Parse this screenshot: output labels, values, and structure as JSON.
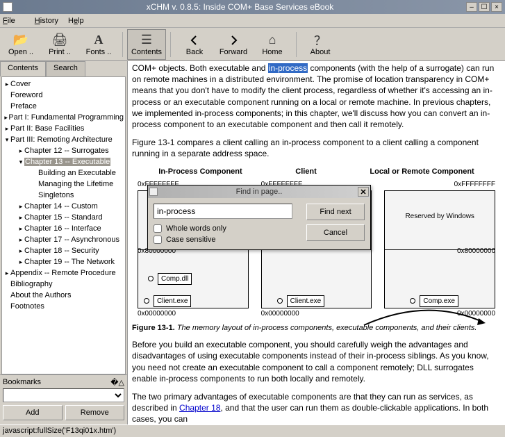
{
  "window": {
    "title": "xCHM v. 0.8.5: Inside COM+ Base Services eBook"
  },
  "menu": {
    "file": "File",
    "history": "History",
    "help": "Help"
  },
  "toolbar": {
    "open": "Open ..",
    "print": "Print ..",
    "fonts": "Fonts ..",
    "contents": "Contents",
    "back": "Back",
    "forward": "Forward",
    "home": "Home",
    "about": "About"
  },
  "sidebar": {
    "tabs": {
      "contents": "Contents",
      "search": "Search"
    },
    "tree": [
      {
        "level": 0,
        "twist": "▸",
        "label": "Cover"
      },
      {
        "level": 0,
        "twist": "",
        "label": "Foreword"
      },
      {
        "level": 0,
        "twist": "",
        "label": "Preface"
      },
      {
        "level": 0,
        "twist": "▸",
        "label": "Part I: Fundamental Programming"
      },
      {
        "level": 0,
        "twist": "▸",
        "label": "Part II: Base Facilities"
      },
      {
        "level": 0,
        "twist": "▾",
        "label": "Part III: Remoting Architecture"
      },
      {
        "level": 1,
        "twist": "▸",
        "label": "Chapter 12 -- Surrogates"
      },
      {
        "level": 1,
        "twist": "▾",
        "label": "Chapter 13 -- Executable",
        "selected": true
      },
      {
        "level": 2,
        "twist": "",
        "label": "Building an Executable"
      },
      {
        "level": 2,
        "twist": "",
        "label": "Managing the Lifetime"
      },
      {
        "level": 2,
        "twist": "",
        "label": "Singletons"
      },
      {
        "level": 1,
        "twist": "▸",
        "label": "Chapter 14 -- Custom"
      },
      {
        "level": 1,
        "twist": "▸",
        "label": "Chapter 15 -- Standard"
      },
      {
        "level": 1,
        "twist": "▸",
        "label": "Chapter 16 -- Interface"
      },
      {
        "level": 1,
        "twist": "▸",
        "label": "Chapter 17 -- Asynchronous"
      },
      {
        "level": 1,
        "twist": "▸",
        "label": "Chapter 18 -- Security"
      },
      {
        "level": 1,
        "twist": "▸",
        "label": "Chapter 19 -- The Network"
      },
      {
        "level": 0,
        "twist": "▸",
        "label": "Appendix -- Remote Procedure"
      },
      {
        "level": 0,
        "twist": "",
        "label": "Bibliography"
      },
      {
        "level": 0,
        "twist": "",
        "label": "About the Authors"
      },
      {
        "level": 0,
        "twist": "",
        "label": "Footnotes"
      }
    ],
    "bookmarks": {
      "label": "Bookmarks",
      "add": "Add",
      "remove": "Remove"
    }
  },
  "content": {
    "p1_a": "COM+ objects. Both executable and ",
    "p1_hl": "in-process",
    "p1_b": " components (with the help of a surrogate) can run on remote machines in a distributed environment. The promise of location transparency in COM+ means that you don't have to modify the client process, regardless of whether it's accessing an in-process or an executable component running on a local or remote machine. In previous chapters, we implemented in-process components; in this chapter, we'll discuss how you can convert an in-process component to an executable component and then call it remotely.",
    "p2": "Figure 13-1 compares a client calling an in-process component to a client calling a component running in a separate address space.",
    "fig": {
      "col1_title": "In-Process Component",
      "col2_title": "Client",
      "col3_title": "Local or Remote Component",
      "addr_hi": "0xFFFFFFFF",
      "addr_mid": "0x80000000",
      "addr_lo": "0x00000000",
      "reserved": "Reserved by Windows",
      "compdll": "Comp.dll",
      "clientexe": "Client.exe",
      "compexe": "Comp.exe",
      "caption_b": "Figure 13-1.",
      "caption_i": "The memory layout of in-process components, executable components, and their clients."
    },
    "p3": "Before you build an executable component, you should carefully weigh the advantages and disadvantages of using executable components instead of their in-process siblings. As you know, you need not create an executable component to call a component remotely; DLL surrogates enable in-process components to run both locally and remotely.",
    "p4_a": "The two primary advantages of executable components are that they can run as services, as described in ",
    "p4_link": "Chapter 18",
    "p4_b": ", and that the user can run them as double-clickable applications. In both cases, you can"
  },
  "find": {
    "title": "Find in page..",
    "value": "in-process",
    "whole": "Whole words only",
    "case": "Case sensitive",
    "findnext": "Find next",
    "cancel": "Cancel"
  },
  "status": "javascript:fullSize('F13qi01x.htm')"
}
